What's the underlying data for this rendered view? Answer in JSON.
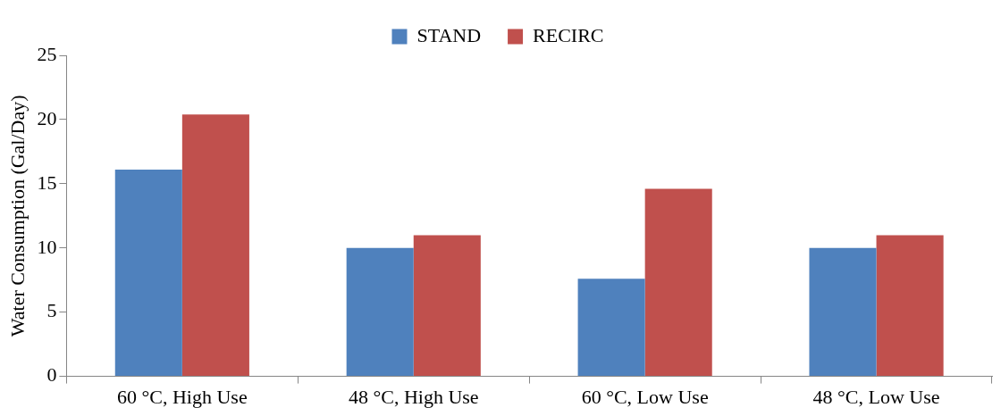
{
  "chart_data": {
    "type": "bar",
    "ylabel": "Water Consumption (Gal/Day)",
    "categories": [
      "60 °C, High Use",
      "48 °C, High Use",
      "60 °C, Low Use",
      "48 °C, Low Use"
    ],
    "series": [
      {
        "name": "STAND",
        "color": "#4f81bd",
        "values": [
          16.1,
          10.0,
          7.6,
          10.0
        ]
      },
      {
        "name": "RECIRC",
        "color": "#c0504d",
        "values": [
          20.4,
          11.0,
          14.6,
          11.0
        ]
      }
    ],
    "ylim": [
      0,
      25
    ],
    "yticks": [
      0,
      5,
      10,
      15,
      20,
      25
    ],
    "grid": false,
    "legend": "top"
  }
}
